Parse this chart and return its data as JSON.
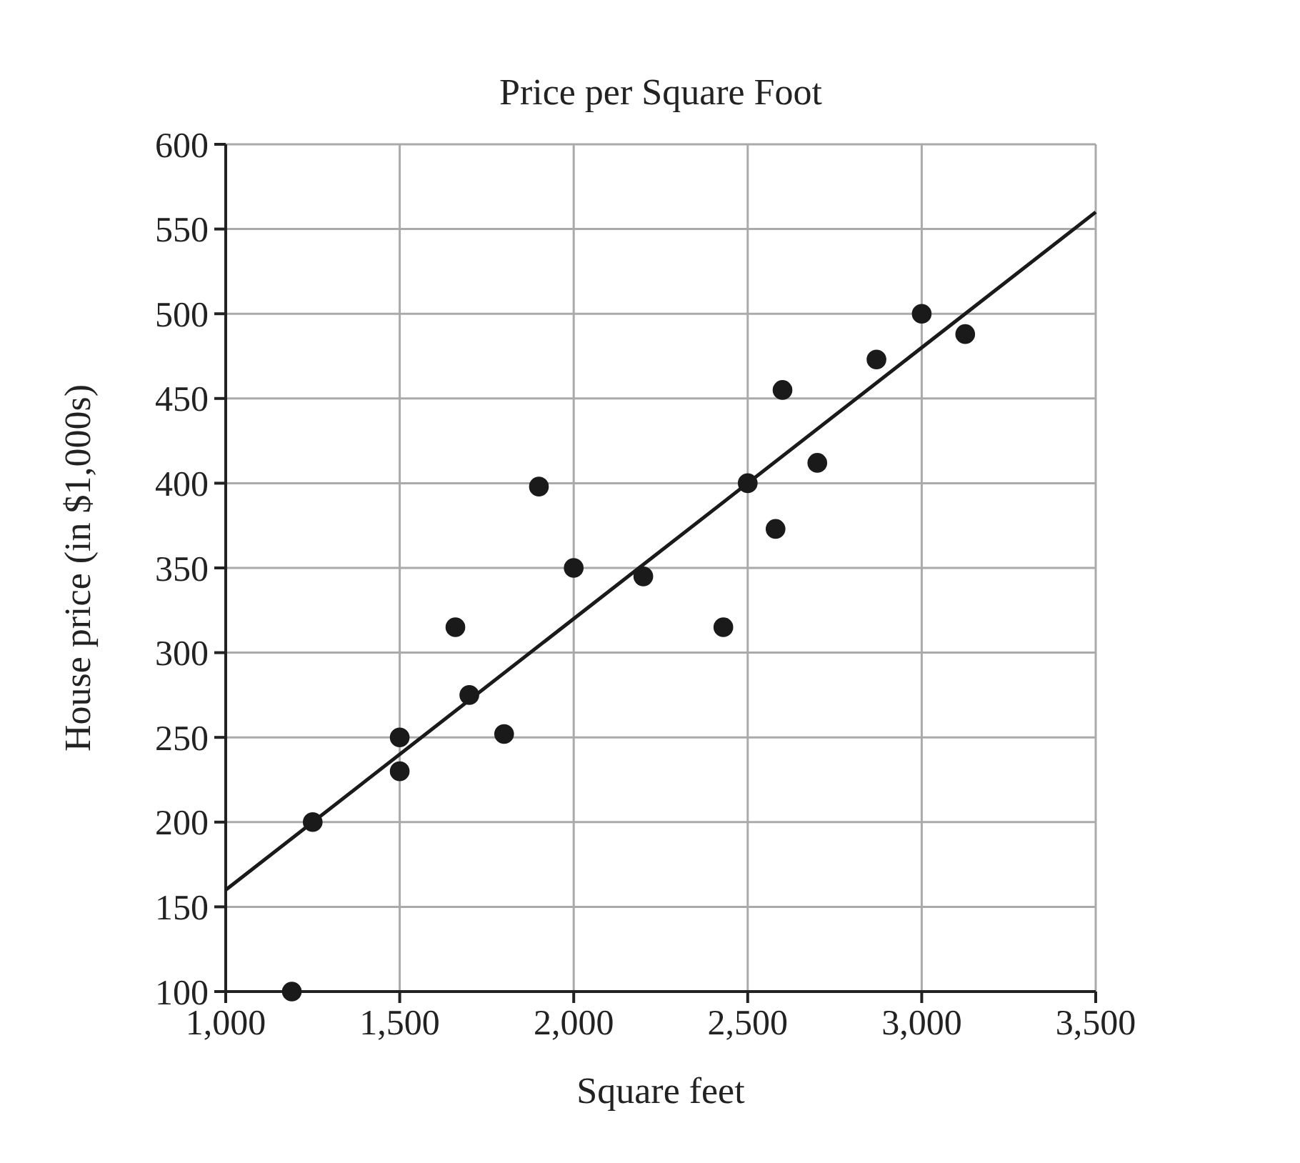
{
  "chart_data": {
    "type": "scatter",
    "title": "Price per Square Foot",
    "xlabel": "Square feet",
    "ylabel": "House price (in $1,000s)",
    "xlim": [
      1000,
      3500
    ],
    "ylim": [
      100,
      600
    ],
    "xticks": [
      {
        "value": 1000,
        "label": "1,000"
      },
      {
        "value": 1500,
        "label": "1,500"
      },
      {
        "value": 2000,
        "label": "2,000"
      },
      {
        "value": 2500,
        "label": "2,500"
      },
      {
        "value": 3000,
        "label": "3,000"
      },
      {
        "value": 3500,
        "label": "3,500"
      }
    ],
    "yticks": [
      100,
      150,
      200,
      250,
      300,
      350,
      400,
      450,
      500,
      550,
      600
    ],
    "grid": true,
    "series": [
      {
        "marker": "circle",
        "color": "#1a1a1a",
        "x": [
          1190,
          1250,
          1500,
          1500,
          1660,
          1700,
          1800,
          1900,
          2000,
          2200,
          2430,
          2500,
          2580,
          2600,
          2700,
          2870,
          3000,
          3125
        ],
        "values": [
          100,
          200,
          250,
          230,
          315,
          275,
          252,
          398,
          350,
          345,
          315,
          400,
          373,
          455,
          412,
          473,
          500,
          488
        ]
      },
      {
        "type": "line",
        "color": "#1a1a1a",
        "x": [
          1000,
          3500
        ],
        "values": [
          160,
          560
        ]
      }
    ]
  }
}
